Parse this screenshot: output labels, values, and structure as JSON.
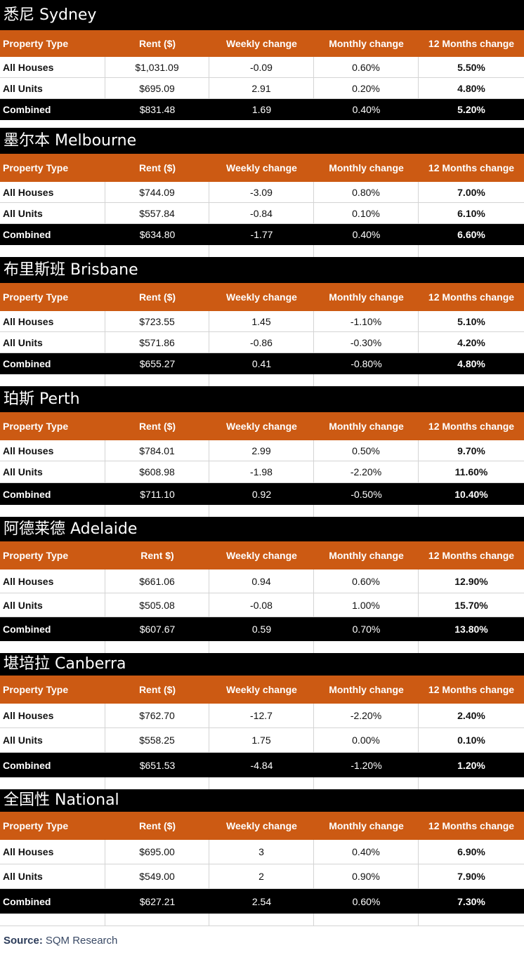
{
  "columns": [
    "Property Type",
    "Rent ($)",
    "Weekly change",
    "Monthly change",
    "12 Months change"
  ],
  "sections": [
    {
      "title": "悉尼 Sydney",
      "header": [
        "Property Type",
        "Rent ($)",
        "Weekly change",
        "Monthly change",
        "12 Months change"
      ],
      "rows": [
        [
          "All Houses",
          "$1,031.09",
          "-0.09",
          "0.60%",
          "5.50%"
        ],
        [
          "All Units",
          "$695.09",
          "2.91",
          "0.20%",
          "4.80%"
        ],
        [
          "Combined",
          "$831.48",
          "1.69",
          "0.40%",
          "5.20%"
        ]
      ]
    },
    {
      "title": "墨尔本 Melbourne",
      "header": [
        "Property Type",
        "Rent ($)",
        "Weekly change",
        "Monthly change",
        "12 Months change"
      ],
      "rows": [
        [
          "All Houses",
          "$744.09",
          "-3.09",
          "0.80%",
          "7.00%"
        ],
        [
          "All Units",
          "$557.84",
          "-0.84",
          "0.10%",
          "6.10%"
        ],
        [
          "Combined",
          "$634.80",
          "-1.77",
          "0.40%",
          "6.60%"
        ]
      ]
    },
    {
      "title": "布里斯班 Brisbane",
      "header": [
        "Property Type",
        "Rent ($)",
        "Weekly change",
        "Monthly change",
        "12 Months change"
      ],
      "rows": [
        [
          "All Houses",
          "$723.55",
          "1.45",
          "-1.10%",
          "5.10%"
        ],
        [
          "All Units",
          "$571.86",
          "-0.86",
          "-0.30%",
          "4.20%"
        ],
        [
          "Combined",
          "$655.27",
          "0.41",
          "-0.80%",
          "4.80%"
        ]
      ]
    },
    {
      "title": "珀斯 Perth",
      "header": [
        "Property Type",
        "Rent ($)",
        "Weekly change",
        "Monthly change",
        "12 Months  change"
      ],
      "rows": [
        [
          "All Houses",
          "$784.01",
          "2.99",
          "0.50%",
          "9.70%"
        ],
        [
          "All Units",
          "$608.98",
          "-1.98",
          "-2.20%",
          "11.60%"
        ],
        [
          "Combined",
          "$711.10",
          "0.92",
          "-0.50%",
          "10.40%"
        ]
      ]
    },
    {
      "title": "阿德莱德 Adelaide",
      "header": [
        "Property Type",
        "Rent $)",
        "Weekly change",
        "Monthly change",
        "12 Months change"
      ],
      "rows": [
        [
          "All Houses",
          "$661.06",
          "0.94",
          "0.60%",
          "12.90%"
        ],
        [
          "All Units",
          "$505.08",
          "-0.08",
          "1.00%",
          "15.70%"
        ],
        [
          "Combined",
          "$607.67",
          "0.59",
          "0.70%",
          "13.80%"
        ]
      ]
    },
    {
      "title": "堪培拉 Canberra",
      "header": [
        "Property Type",
        "Rent ($)",
        "Weekly change",
        "Monthly change",
        "12 Months change"
      ],
      "rows": [
        [
          "All Houses",
          "$762.70",
          "-12.7",
          "-2.20%",
          "2.40%"
        ],
        [
          "All Units",
          "$558.25",
          "1.75",
          "0.00%",
          "0.10%"
        ],
        [
          "Combined",
          "$651.53",
          "-4.84",
          "-1.20%",
          "1.20%"
        ]
      ]
    },
    {
      "title": "全国性 National",
      "header": [
        "Property Type",
        "Rent ($)",
        "Weekly change",
        "Monthly change",
        "12 Months change"
      ],
      "rows": [
        [
          "All Houses",
          "$695.00",
          "3",
          "0.40%",
          "6.90%"
        ],
        [
          "All Units",
          "$549.00",
          "2",
          "0.90%",
          "7.90%"
        ],
        [
          "Combined",
          "$627.21",
          "2.54",
          "0.60%",
          "7.30%"
        ]
      ]
    }
  ],
  "source": {
    "label": "Source:",
    "text": "SQM Research"
  },
  "colors": {
    "header_bg": "#000000",
    "column_header_bg": "#cc5a13",
    "combined_bg": "#000000",
    "border": "#d4d4d4"
  }
}
